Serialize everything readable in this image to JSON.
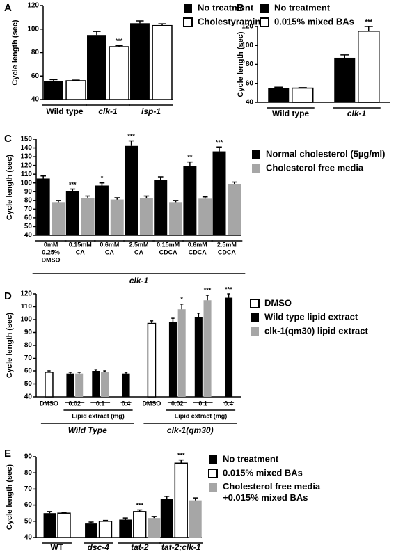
{
  "chart_data": [
    {
      "type": "bar",
      "panel": "A",
      "y_label": "Cycle length (sec)",
      "categories": [
        "Wild type",
        "clk-1",
        "isp-1"
      ],
      "series": [
        {
          "name": "No treatment",
          "color": "#000000",
          "values": [
            56,
            95,
            105
          ],
          "errors": [
            1,
            3,
            2
          ],
          "significance": [
            null,
            null,
            null
          ]
        },
        {
          "name": "Cholestyramine",
          "color": "#ffffff",
          "values": [
            56,
            85,
            103
          ],
          "errors": [
            0.5,
            1,
            1.5
          ],
          "significance": [
            null,
            "***",
            null
          ]
        }
      ],
      "ylim": [
        40,
        120
      ],
      "yticks": [
        40,
        60,
        80,
        100,
        120
      ]
    },
    {
      "type": "bar",
      "panel": "B",
      "y_label": "Cycle length (sec)",
      "categories": [
        "Wild type",
        "clk-1"
      ],
      "series": [
        {
          "name": "No treatment",
          "color": "#000000",
          "values": [
            55,
            87
          ],
          "errors": [
            1,
            3
          ],
          "significance": [
            null,
            null
          ]
        },
        {
          "name": "0.015% mixed BAs",
          "color": "#ffffff",
          "values": [
            55,
            115
          ],
          "errors": [
            0.5,
            5
          ],
          "significance": [
            null,
            "***"
          ]
        }
      ],
      "ylim": [
        40,
        120
      ],
      "yticks": [
        40,
        60,
        80,
        100,
        120
      ]
    },
    {
      "type": "bar",
      "panel": "C",
      "y_label": "Cycle length (sec)",
      "categories": [
        [
          "0mM",
          "0.25%",
          "DMSO"
        ],
        [
          "0.15mM",
          "CA"
        ],
        [
          "0.6mM",
          "CA"
        ],
        [
          "2.5mM",
          "CA"
        ],
        [
          "0.15mM",
          "CDCA"
        ],
        [
          "0.6mM",
          "CDCA"
        ],
        [
          "2.5mM",
          "CDCA"
        ]
      ],
      "group_labels": [
        "clk-1"
      ],
      "series": [
        {
          "name": "Normal cholesterol (5µg/ml)",
          "color": "#000000",
          "values": [
            105,
            91,
            97,
            143,
            103,
            119,
            136
          ],
          "errors": [
            3,
            2,
            3,
            5,
            4,
            5,
            5
          ],
          "significance": [
            null,
            "***",
            "*",
            "***",
            null,
            "**",
            "***"
          ]
        },
        {
          "name": "Cholesterol free media",
          "color": "#a6a6a6",
          "values": [
            78,
            83,
            81,
            83,
            78,
            82,
            99
          ],
          "errors": [
            2,
            2,
            2,
            2,
            2,
            2,
            2
          ],
          "significance": [
            null,
            null,
            null,
            null,
            null,
            null,
            null
          ]
        }
      ],
      "ylim": [
        40,
        150
      ],
      "yticks": [
        40,
        50,
        60,
        70,
        80,
        90,
        100,
        110,
        120,
        130,
        140,
        150
      ]
    },
    {
      "type": "bar",
      "panel": "D",
      "y_label": "Cycle length (sec)",
      "categories": [
        "DMSO",
        "0.02",
        "0.1",
        "0.4",
        "DMSO",
        "0.02",
        "0.1",
        "0.4"
      ],
      "sub_labels": [
        "Lipid extract (mg)",
        "Lipid extract (mg)"
      ],
      "group_labels": [
        "Wild Type",
        "clk-1(qm30)"
      ],
      "series": [
        {
          "name": "DMSO",
          "color": "#ffffff",
          "values": [
            59,
            null,
            null,
            null,
            97,
            null,
            null,
            null
          ],
          "errors": [
            1,
            null,
            null,
            null,
            2,
            null,
            null,
            null
          ],
          "significance": [
            null,
            null,
            null,
            null,
            null,
            null,
            null,
            null
          ]
        },
        {
          "name": "Wild type lipid extract",
          "color": "#000000",
          "values": [
            null,
            58,
            60,
            58,
            null,
            98,
            102,
            117
          ],
          "errors": [
            null,
            1,
            1,
            1,
            null,
            3,
            3,
            3
          ],
          "significance": [
            null,
            null,
            null,
            null,
            null,
            null,
            null,
            "***"
          ]
        },
        {
          "name": "clk-1(qm30) lipid extract",
          "color": "#a6a6a6",
          "values": [
            null,
            58,
            59,
            null,
            null,
            108,
            115,
            null
          ],
          "errors": [
            null,
            1,
            1,
            null,
            null,
            4,
            4,
            null
          ],
          "significance": [
            null,
            null,
            null,
            null,
            null,
            "*",
            "***",
            null
          ]
        }
      ],
      "ylim": [
        40,
        120
      ],
      "yticks": [
        40,
        50,
        60,
        70,
        80,
        90,
        100,
        110,
        120
      ]
    },
    {
      "type": "bar",
      "panel": "E",
      "y_label": "Cycle length (sec)",
      "categories": [
        "WT",
        "dsc-4",
        "tat-2",
        "tat-2;clk-1"
      ],
      "series": [
        {
          "name": "No treatment",
          "color": "#000000",
          "values": [
            55,
            49,
            51,
            64
          ],
          "errors": [
            1,
            0.5,
            1,
            1.5
          ],
          "significance": [
            null,
            null,
            null,
            null
          ]
        },
        {
          "name": "0.015% mixed BAs",
          "color": "#ffffff",
          "values": [
            55,
            50,
            56,
            86
          ],
          "errors": [
            0.5,
            0.5,
            1,
            2
          ],
          "significance": [
            null,
            null,
            "***",
            "***"
          ]
        },
        {
          "name": "Cholesterol free media +0.015% mixed BAs",
          "color": "#a6a6a6",
          "values": [
            null,
            null,
            52,
            63
          ],
          "errors": [
            null,
            null,
            1,
            1.5
          ],
          "significance": [
            null,
            null,
            null,
            null
          ]
        }
      ],
      "ylim": [
        40,
        90
      ],
      "yticks": [
        40,
        50,
        60,
        70,
        80,
        90
      ]
    }
  ]
}
